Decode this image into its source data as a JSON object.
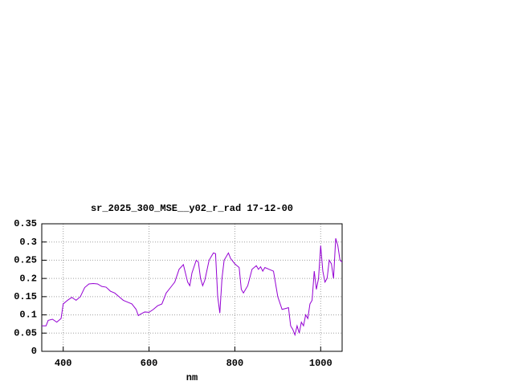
{
  "chart_data": {
    "type": "line",
    "title": "sr_2025_300_MSE__y02_r_rad 17-12-00",
    "x_label": "nm",
    "xlim": [
      350,
      1050
    ],
    "xticks": [
      400,
      600,
      800,
      1000
    ],
    "ylim": [
      0,
      0.35
    ],
    "yticks": [
      0,
      0.05,
      0.1,
      0.15,
      0.2,
      0.25,
      0.3,
      0.35
    ],
    "grid": true,
    "series": [
      {
        "color": "#9400d3",
        "x": [
          350,
          360,
          365,
          375,
          385,
          395,
          400,
          410,
          420,
          430,
          440,
          450,
          460,
          470,
          480,
          490,
          500,
          510,
          520,
          530,
          540,
          550,
          560,
          570,
          575,
          580,
          590,
          600,
          610,
          620,
          630,
          640,
          650,
          660,
          670,
          680,
          690,
          695,
          700,
          710,
          715,
          720,
          725,
          730,
          740,
          750,
          755,
          760,
          765,
          770,
          775,
          785,
          790,
          800,
          810,
          815,
          820,
          830,
          840,
          850,
          855,
          860,
          865,
          870,
          880,
          890,
          900,
          910,
          920,
          925,
          930,
          935,
          940,
          945,
          950,
          955,
          960,
          965,
          970,
          975,
          980,
          985,
          990,
          995,
          1000,
          1005,
          1010,
          1015,
          1020,
          1025,
          1030,
          1035,
          1040,
          1045,
          1050
        ],
        "values": [
          0.07,
          0.07,
          0.085,
          0.088,
          0.08,
          0.09,
          0.13,
          0.14,
          0.148,
          0.14,
          0.15,
          0.175,
          0.185,
          0.186,
          0.185,
          0.178,
          0.176,
          0.165,
          0.16,
          0.15,
          0.14,
          0.135,
          0.13,
          0.115,
          0.098,
          0.102,
          0.108,
          0.107,
          0.115,
          0.125,
          0.13,
          0.16,
          0.175,
          0.19,
          0.225,
          0.238,
          0.19,
          0.18,
          0.215,
          0.25,
          0.245,
          0.2,
          0.18,
          0.195,
          0.25,
          0.27,
          0.268,
          0.15,
          0.105,
          0.2,
          0.25,
          0.27,
          0.255,
          0.24,
          0.23,
          0.17,
          0.16,
          0.18,
          0.225,
          0.235,
          0.225,
          0.232,
          0.22,
          0.23,
          0.225,
          0.22,
          0.15,
          0.115,
          0.118,
          0.12,
          0.07,
          0.06,
          0.045,
          0.07,
          0.05,
          0.08,
          0.07,
          0.1,
          0.09,
          0.13,
          0.14,
          0.22,
          0.17,
          0.2,
          0.29,
          0.22,
          0.19,
          0.2,
          0.25,
          0.24,
          0.2,
          0.31,
          0.29,
          0.25,
          0.245
        ]
      }
    ]
  }
}
